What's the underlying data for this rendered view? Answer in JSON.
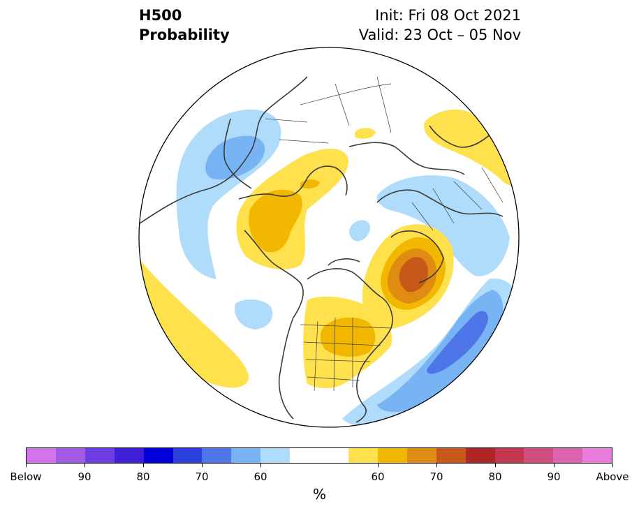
{
  "header": {
    "field": "H500",
    "product": "Probability",
    "init": "Init: Fri 08 Oct 2021",
    "valid": "Valid: 23 Oct – 05 Nov"
  },
  "colors": {
    "below": [
      "#d474ec",
      "#a259e4",
      "#6d3de4",
      "#3f1fd8",
      "#0000d8",
      "#2a3fdc",
      "#4e76e8",
      "#78b3f4",
      "#aedcfa"
    ],
    "neutral": "#ffffff",
    "above": [
      "#ffe14d",
      "#f2b700",
      "#de8c12",
      "#c85817",
      "#b02626",
      "#c23650",
      "#d04f7e",
      "#dc63b0",
      "#ea7ddb"
    ],
    "land_lines": "#3a3a3a"
  },
  "colorbar": {
    "tick_labels": [
      "Below",
      "90",
      "80",
      "70",
      "60",
      "60",
      "70",
      "80",
      "90",
      "Above"
    ],
    "units": "%"
  },
  "map_features": {
    "projection": "north-polar-stereographic",
    "anomaly_regions": [
      {
        "sign": "below",
        "level": 1,
        "region": "Siberia / East Asia"
      },
      {
        "sign": "below",
        "level": 2,
        "region": "Siberia / East Asia"
      },
      {
        "sign": "above",
        "level": 1,
        "region": "Chukotka / Alaska"
      },
      {
        "sign": "above",
        "level": 2,
        "region": "Chukotka / Alaska"
      },
      {
        "sign": "above",
        "level": 3,
        "region": "Alaska"
      },
      {
        "sign": "below",
        "level": 1,
        "region": "Europe"
      },
      {
        "sign": "above",
        "level": 1,
        "region": "Greenland / North Atlantic"
      },
      {
        "sign": "above",
        "level": 2,
        "region": "Greenland / North Atlantic"
      },
      {
        "sign": "above",
        "level": 3,
        "region": "Greenland / North Atlantic"
      },
      {
        "sign": "above",
        "level": 4,
        "region": "Greenland / North Atlantic"
      },
      {
        "sign": "above",
        "level": 1,
        "region": "Central / Eastern North America"
      },
      {
        "sign": "above",
        "level": 2,
        "region": "Eastern Canada"
      },
      {
        "sign": "below",
        "level": 1,
        "region": "Western Atlantic"
      },
      {
        "sign": "below",
        "level": 2,
        "region": "Western Atlantic"
      },
      {
        "sign": "below",
        "level": 3,
        "region": "Western Atlantic"
      },
      {
        "sign": "above",
        "level": 1,
        "region": "North Pacific"
      },
      {
        "sign": "above",
        "level": 1,
        "region": "Middle East / North Africa"
      },
      {
        "sign": "below",
        "level": 1,
        "region": "Alaska Gulf"
      },
      {
        "sign": "below",
        "level": 1,
        "region": "Arctic Ocean"
      }
    ]
  }
}
